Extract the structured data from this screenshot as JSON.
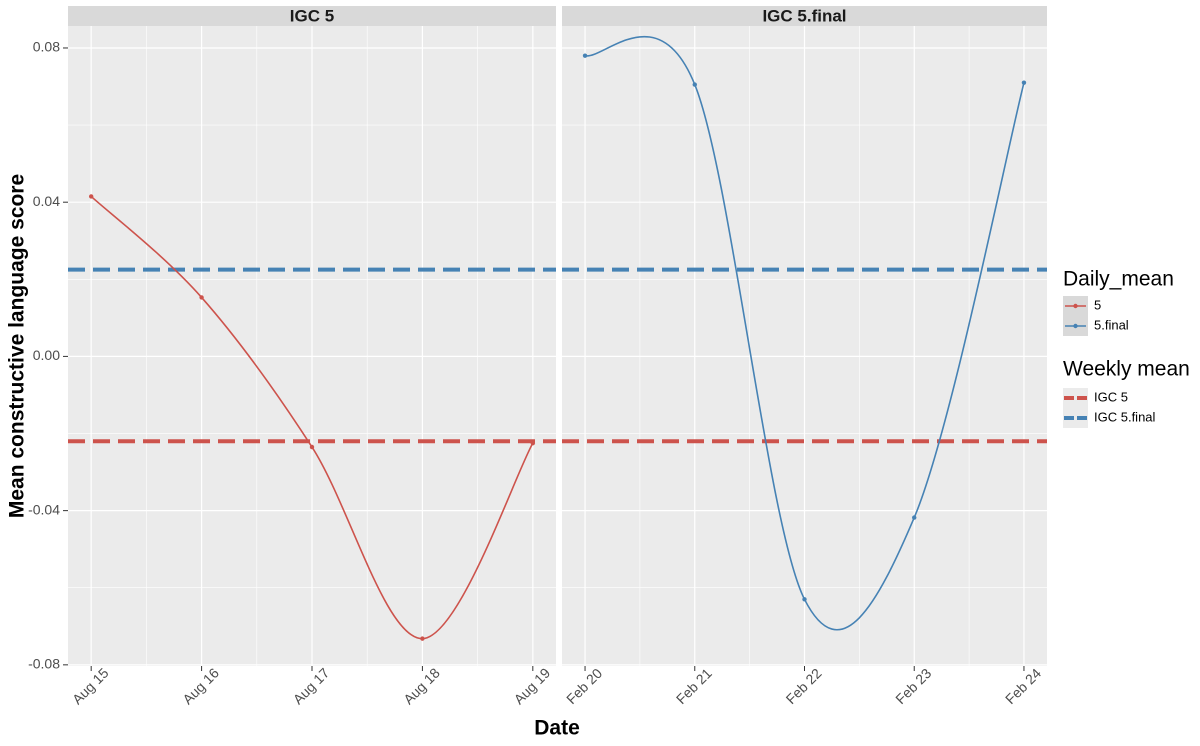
{
  "chart_data": {
    "type": "line",
    "y_label": "Mean constructive language score",
    "x_label": "Date",
    "ylim": [
      -0.0803,
      0.0857
    ],
    "yticks": [
      -0.08,
      -0.04,
      {
        "value": 0,
        "label": "0.00"
      },
      0.04,
      0.08
    ],
    "grid": true,
    "facets": [
      {
        "title": "IGC 5",
        "categories": [
          "Aug 15",
          "Aug 16",
          "Aug 17",
          "Aug 18",
          "Aug 19"
        ],
        "series": [
          {
            "name": "5",
            "color": "#cd534c",
            "values": [
              0.0415,
              0.0153,
              -0.0235,
              -0.0732,
              -0.0225
            ]
          }
        ]
      },
      {
        "title": "IGC 5.final",
        "categories": [
          "Feb 20",
          "Feb 21",
          "Feb 22",
          "Feb 23",
          "Feb 24"
        ],
        "series": [
          {
            "name": "5.final",
            "color": "#4682b4",
            "values": [
              0.078,
              0.0705,
              -0.063,
              -0.0418,
              0.071
            ]
          }
        ]
      }
    ],
    "legend_title": "Daily_mean",
    "hlines_title": "Weekly mean",
    "hlines": [
      {
        "name": "IGC 5",
        "color": "#cd534c",
        "value": -0.022
      },
      {
        "name": "IGC 5.final",
        "color": "#4682b4",
        "value": 0.0225
      }
    ]
  }
}
